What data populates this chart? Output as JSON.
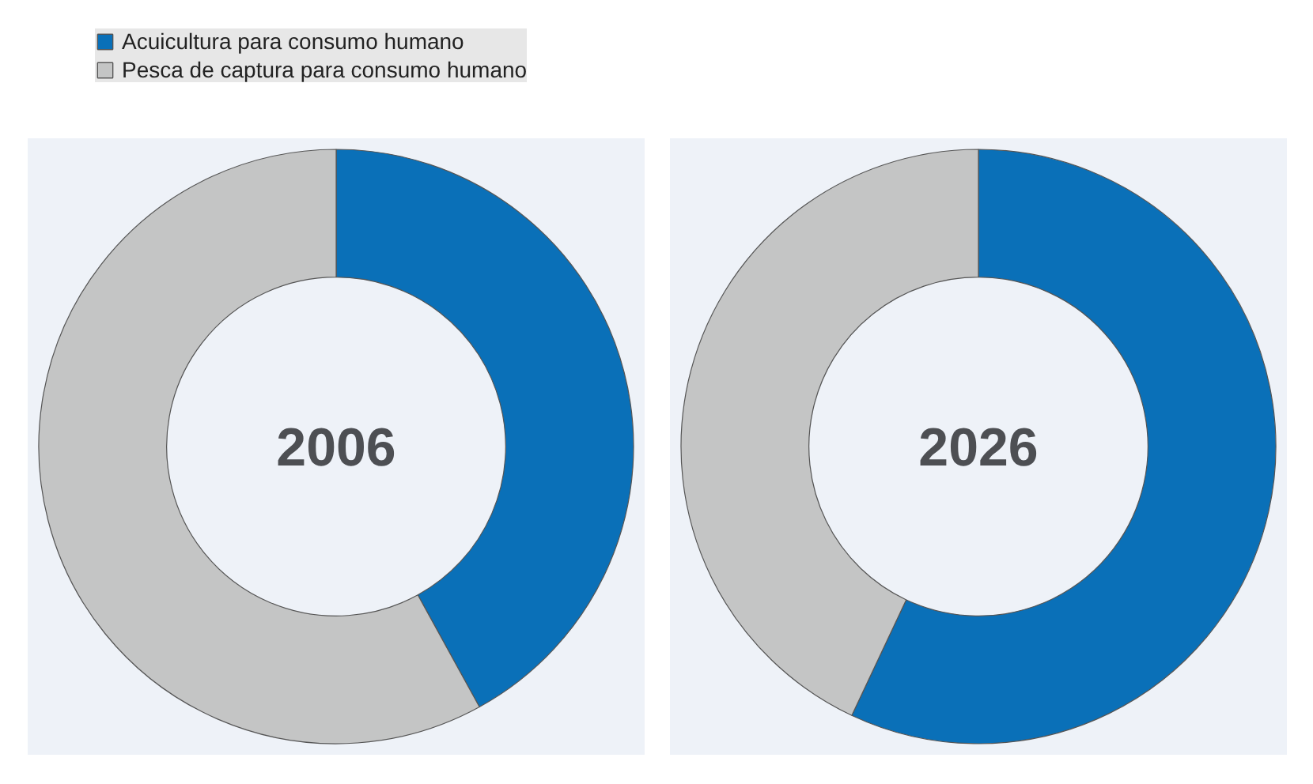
{
  "chart_data": [
    {
      "type": "donut",
      "title": "2006",
      "categories": [
        "Acuicultura para consumo humano",
        "Pesca de captura para consumo humano"
      ],
      "values": [
        42,
        58
      ],
      "colors": [
        "#0a70b8",
        "#c4c5c5"
      ],
      "legend": "top"
    },
    {
      "type": "donut",
      "title": "2026",
      "values": [
        57,
        43
      ],
      "colors": [
        "#0a70b8",
        "#c4c5c5"
      ]
    }
  ]
}
